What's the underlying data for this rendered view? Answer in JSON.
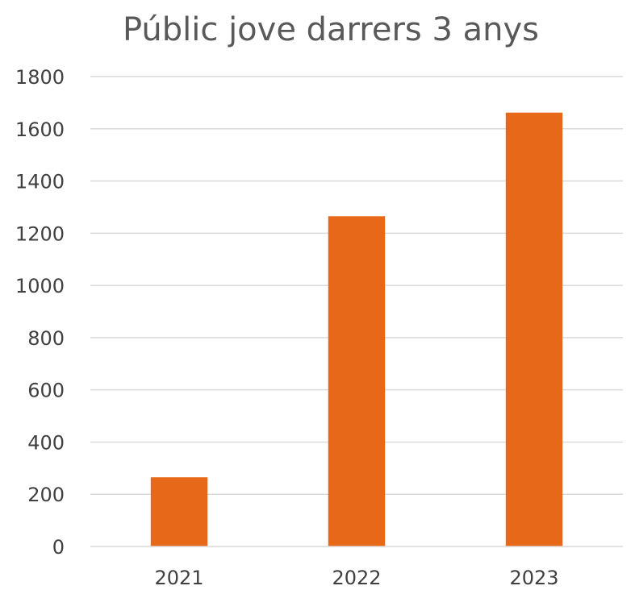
{
  "chart_data": {
    "type": "bar",
    "title": "Públic jove darrers 3 anys",
    "xlabel": "",
    "ylabel": "",
    "categories": [
      "2021",
      "2022",
      "2023"
    ],
    "values": [
      265,
      1265,
      1662
    ],
    "ylim": [
      0,
      1800
    ],
    "yticks": [
      "0",
      "200",
      "400",
      "600",
      "800",
      "1000",
      "1200",
      "1400",
      "1600",
      "1800"
    ],
    "grid": true,
    "legend": "none",
    "bar_color": "#E8681A"
  }
}
